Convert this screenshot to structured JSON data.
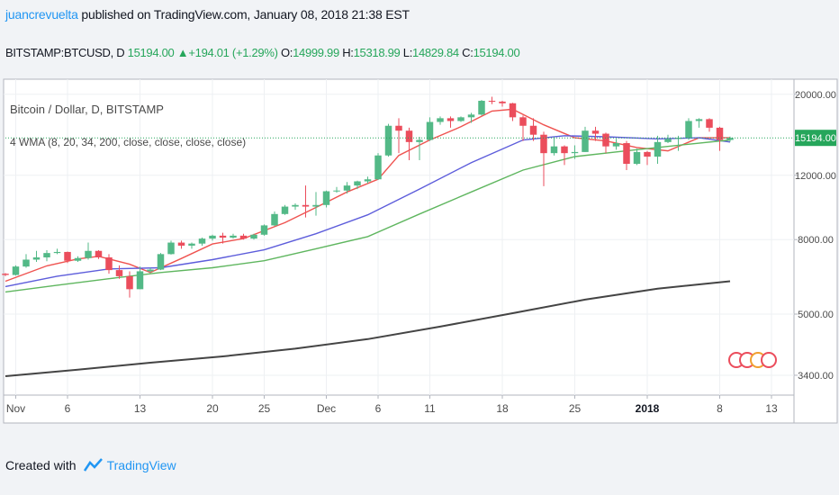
{
  "header": {
    "author": "juancrevuelta",
    "published": "published on TradingView.com, January 08, 2018 21:38 EST"
  },
  "ohlc": {
    "symbol": "BITSTAMP:BTCUSD, D",
    "close_val": "15194.00",
    "change": "+194.01 (+1.29%)",
    "o_label": "O:",
    "o": "14999.99",
    "h_label": "H:",
    "h": "15318.99",
    "l_label": "L:",
    "l": "14829.84",
    "c_label": "C:",
    "c": "15194.00"
  },
  "legend": {
    "title": "Bitcoin / Dollar, D, BITSTAMP",
    "indicator": "4 WMA (8, 20, 34, 200, close, close, close, close)"
  },
  "footer": {
    "created": "Created with",
    "brand": "TradingView"
  },
  "colors": {
    "up": "#53b987",
    "down": "#eb4d5c",
    "wma8": "#ef5350",
    "wma20": "#5d5ddb",
    "wma34": "#5fb65f",
    "wma200": "#444444",
    "priceline": "#26a65b",
    "pricelabel": "#26a65b"
  },
  "chart_data": {
    "type": "candlestick",
    "title": "Bitcoin / Dollar, D, BITSTAMP",
    "y_scale": "log",
    "ylim": [
      3000,
      22000
    ],
    "y_ticks": [
      "20000.00",
      "12000.00",
      "8000.00",
      "5000.00",
      "3400.00"
    ],
    "y_tick_values": [
      20000,
      12000,
      8000,
      5000,
      3400
    ],
    "x_ticks": [
      {
        "label": "Nov",
        "date": "2017-11-01"
      },
      {
        "label": "6",
        "date": "2017-11-06"
      },
      {
        "label": "13",
        "date": "2017-11-13"
      },
      {
        "label": "20",
        "date": "2017-11-20"
      },
      {
        "label": "25",
        "date": "2017-11-25"
      },
      {
        "label": "Dec",
        "date": "2017-12-01"
      },
      {
        "label": "6",
        "date": "2017-12-06"
      },
      {
        "label": "11",
        "date": "2017-12-11"
      },
      {
        "label": "18",
        "date": "2017-12-18"
      },
      {
        "label": "25",
        "date": "2017-12-25"
      },
      {
        "label": "2018",
        "date": "2018-01-01",
        "bold": true
      },
      {
        "label": "8",
        "date": "2018-01-08"
      },
      {
        "label": "13",
        "date": "2018-01-13"
      }
    ],
    "xlim": [
      "2017-10-31",
      "2018-01-15"
    ],
    "last_price": 15194,
    "last_price_label": "15194.00",
    "candles": [
      [
        "2017-10-31",
        6450,
        6480,
        6350,
        6400
      ],
      [
        "2017-11-01",
        6400,
        6800,
        6380,
        6750
      ],
      [
        "2017-11-02",
        6750,
        7300,
        6700,
        7050
      ],
      [
        "2017-11-03",
        7050,
        7450,
        6950,
        7150
      ],
      [
        "2017-11-04",
        7150,
        7480,
        6980,
        7350
      ],
      [
        "2017-11-05",
        7350,
        7550,
        7300,
        7400
      ],
      [
        "2017-11-06",
        7400,
        7420,
        6900,
        7000
      ],
      [
        "2017-11-07",
        7000,
        7200,
        6950,
        7120
      ],
      [
        "2017-11-08",
        7120,
        7850,
        7050,
        7450
      ],
      [
        "2017-11-09",
        7450,
        7480,
        7080,
        7150
      ],
      [
        "2017-11-10",
        7150,
        7300,
        6450,
        6600
      ],
      [
        "2017-11-11",
        6600,
        6800,
        6250,
        6350
      ],
      [
        "2017-11-12",
        6350,
        6550,
        5550,
        5850
      ],
      [
        "2017-11-13",
        5850,
        6750,
        5850,
        6550
      ],
      [
        "2017-11-14",
        6550,
        6700,
        6500,
        6620
      ],
      [
        "2017-11-15",
        6620,
        7350,
        6600,
        7300
      ],
      [
        "2017-11-16",
        7300,
        7950,
        7280,
        7850
      ],
      [
        "2017-11-17",
        7850,
        7950,
        7550,
        7700
      ],
      [
        "2017-11-18",
        7700,
        7850,
        7550,
        7800
      ],
      [
        "2017-11-19",
        7800,
        8100,
        7700,
        8050
      ],
      [
        "2017-11-20",
        8050,
        8250,
        7950,
        8200
      ],
      [
        "2017-11-21",
        8200,
        8350,
        7800,
        8100
      ],
      [
        "2017-11-22",
        8100,
        8300,
        8050,
        8200
      ],
      [
        "2017-11-23",
        8200,
        8300,
        8000,
        8050
      ],
      [
        "2017-11-24",
        8050,
        8300,
        8000,
        8250
      ],
      [
        "2017-11-25",
        8250,
        8800,
        8200,
        8750
      ],
      [
        "2017-11-26",
        8750,
        9550,
        8700,
        9400
      ],
      [
        "2017-11-27",
        9400,
        9950,
        9350,
        9850
      ],
      [
        "2017-11-28",
        9850,
        10050,
        9650,
        9950
      ],
      [
        "2017-11-29",
        9950,
        11250,
        9200,
        9850
      ],
      [
        "2017-11-30",
        9850,
        10800,
        9300,
        9950
      ],
      [
        "2017-12-01",
        9950,
        10900,
        9800,
        10850
      ],
      [
        "2017-12-02",
        10850,
        11150,
        10750,
        10900
      ],
      [
        "2017-12-03",
        10900,
        11500,
        10700,
        11250
      ],
      [
        "2017-12-04",
        11250,
        11600,
        11000,
        11550
      ],
      [
        "2017-12-05",
        11550,
        11900,
        11400,
        11700
      ],
      [
        "2017-12-06",
        11700,
        13800,
        11650,
        13600
      ],
      [
        "2017-12-07",
        13600,
        16600,
        13500,
        16400
      ],
      [
        "2017-12-08",
        16400,
        17200,
        13800,
        15900
      ],
      [
        "2017-12-09",
        15900,
        16200,
        13200,
        14800
      ],
      [
        "2017-12-10",
        14800,
        15300,
        13200,
        15000
      ],
      [
        "2017-12-11",
        15000,
        17300,
        14900,
        16800
      ],
      [
        "2017-12-12",
        16800,
        17400,
        16500,
        17200
      ],
      [
        "2017-12-13",
        17200,
        17400,
        16200,
        16900
      ],
      [
        "2017-12-14",
        16900,
        17400,
        16800,
        17300
      ],
      [
        "2017-12-15",
        17300,
        17800,
        16700,
        17600
      ],
      [
        "2017-12-16",
        17600,
        19300,
        17500,
        19200
      ],
      [
        "2017-12-17",
        19200,
        19700,
        18800,
        19100
      ],
      [
        "2017-12-18",
        19100,
        19200,
        18500,
        18900
      ],
      [
        "2017-12-19",
        18900,
        18950,
        16900,
        17300
      ],
      [
        "2017-12-20",
        17300,
        17500,
        14900,
        16400
      ],
      [
        "2017-12-21",
        16400,
        17200,
        14900,
        15500
      ],
      [
        "2017-12-22",
        15500,
        15800,
        11200,
        13800
      ],
      [
        "2017-12-23",
        13800,
        15300,
        13600,
        14400
      ],
      [
        "2017-12-24",
        14400,
        14500,
        12800,
        13800
      ],
      [
        "2017-12-25",
        13800,
        14500,
        13300,
        13900
      ],
      [
        "2017-12-26",
        13900,
        16300,
        13900,
        15900
      ],
      [
        "2017-12-27",
        15900,
        16300,
        14900,
        15600
      ],
      [
        "2017-12-28",
        15600,
        15700,
        13800,
        14400
      ],
      [
        "2017-12-29",
        14400,
        15100,
        14100,
        14700
      ],
      [
        "2017-12-30",
        14700,
        14900,
        12400,
        12900
      ],
      [
        "2017-12-31",
        12900,
        14200,
        12800,
        13900
      ],
      [
        "2018-01-01",
        13900,
        14000,
        12800,
        13500
      ],
      [
        "2018-01-02",
        13500,
        15400,
        12900,
        14800
      ],
      [
        "2018-01-03",
        14800,
        15500,
        14700,
        15100
      ],
      [
        "2018-01-04",
        15100,
        15400,
        14000,
        15200
      ],
      [
        "2018-01-05",
        15200,
        17200,
        15000,
        16900
      ],
      [
        "2018-01-06",
        16900,
        17200,
        16200,
        17100
      ],
      [
        "2018-01-07",
        17100,
        17200,
        15800,
        16200
      ],
      [
        "2018-01-08",
        16200,
        16300,
        14000,
        15000
      ],
      [
        "2018-01-09",
        14999.99,
        15318.99,
        14829.84,
        15194
      ]
    ],
    "series": [
      {
        "name": "WMA 8",
        "points": [
          [
            "2017-10-31",
            6150
          ],
          [
            "2017-11-04",
            6780
          ],
          [
            "2017-11-07",
            7080
          ],
          [
            "2017-11-09",
            7200
          ],
          [
            "2017-11-12",
            6850
          ],
          [
            "2017-11-14",
            6500
          ],
          [
            "2017-11-17",
            7100
          ],
          [
            "2017-11-20",
            7780
          ],
          [
            "2017-11-23",
            8050
          ],
          [
            "2017-11-27",
            8900
          ],
          [
            "2017-11-30",
            9800
          ],
          [
            "2017-12-03",
            10800
          ],
          [
            "2017-12-06",
            11700
          ],
          [
            "2017-12-08",
            13600
          ],
          [
            "2017-12-11",
            15000
          ],
          [
            "2017-12-14",
            16300
          ],
          [
            "2017-12-17",
            18000
          ],
          [
            "2017-12-19",
            18200
          ],
          [
            "2017-12-22",
            16500
          ],
          [
            "2017-12-25",
            15200
          ],
          [
            "2017-12-28",
            14900
          ],
          [
            "2017-12-31",
            14300
          ],
          [
            "2018-01-03",
            14000
          ],
          [
            "2018-01-06",
            15200
          ],
          [
            "2018-01-09",
            15200
          ]
        ]
      },
      {
        "name": "WMA 20",
        "points": [
          [
            "2017-10-31",
            5950
          ],
          [
            "2017-11-05",
            6350
          ],
          [
            "2017-11-10",
            6650
          ],
          [
            "2017-11-15",
            6700
          ],
          [
            "2017-11-20",
            7050
          ],
          [
            "2017-11-25",
            7500
          ],
          [
            "2017-11-30",
            8300
          ],
          [
            "2017-12-05",
            9350
          ],
          [
            "2017-12-10",
            11000
          ],
          [
            "2017-12-15",
            13000
          ],
          [
            "2017-12-20",
            15000
          ],
          [
            "2017-12-24",
            15400
          ],
          [
            "2017-12-28",
            15300
          ],
          [
            "2018-01-02",
            15100
          ],
          [
            "2018-01-06",
            15200
          ],
          [
            "2018-01-09",
            14800
          ]
        ]
      },
      {
        "name": "WMA 34",
        "points": [
          [
            "2017-10-31",
            5750
          ],
          [
            "2017-11-05",
            6000
          ],
          [
            "2017-11-10",
            6250
          ],
          [
            "2017-11-15",
            6500
          ],
          [
            "2017-11-20",
            6700
          ],
          [
            "2017-11-25",
            7000
          ],
          [
            "2017-11-30",
            7550
          ],
          [
            "2017-12-05",
            8150
          ],
          [
            "2017-12-10",
            9400
          ],
          [
            "2017-12-15",
            10800
          ],
          [
            "2017-12-20",
            12400
          ],
          [
            "2017-12-25",
            13500
          ],
          [
            "2017-12-30",
            14000
          ],
          [
            "2018-01-04",
            14500
          ],
          [
            "2018-01-09",
            15000
          ]
        ]
      },
      {
        "name": "WMA 200",
        "points": [
          [
            "2017-10-31",
            3380
          ],
          [
            "2017-11-07",
            3520
          ],
          [
            "2017-11-14",
            3680
          ],
          [
            "2017-11-21",
            3830
          ],
          [
            "2017-11-28",
            4020
          ],
          [
            "2017-12-05",
            4270
          ],
          [
            "2017-12-12",
            4620
          ],
          [
            "2017-12-19",
            5030
          ],
          [
            "2017-12-26",
            5480
          ],
          [
            "2018-01-02",
            5870
          ],
          [
            "2018-01-09",
            6150
          ]
        ]
      }
    ]
  }
}
